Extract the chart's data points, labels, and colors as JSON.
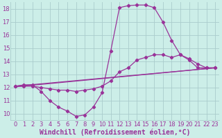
{
  "bg_color": "#cceee8",
  "grid_color": "#aacccc",
  "line_color": "#993399",
  "marker_color": "#993399",
  "xlabel": "Windchill (Refroidissement éolien,°C)",
  "xlim": [
    -0.5,
    23.5
  ],
  "ylim": [
    9.5,
    18.5
  ],
  "yticks": [
    10,
    11,
    12,
    13,
    14,
    15,
    16,
    17,
    18
  ],
  "xticks": [
    0,
    1,
    2,
    3,
    4,
    5,
    6,
    7,
    8,
    9,
    10,
    11,
    12,
    13,
    14,
    15,
    16,
    17,
    18,
    19,
    20,
    21,
    22,
    23
  ],
  "line1_x": [
    0,
    1,
    2,
    3,
    4,
    5,
    6,
    7,
    8,
    9,
    10,
    11,
    12,
    13,
    14,
    15,
    16,
    17,
    18,
    19,
    20,
    21,
    22,
    23
  ],
  "line1_y": [
    12.1,
    12.2,
    12.2,
    11.7,
    11.0,
    10.5,
    10.2,
    9.8,
    9.9,
    10.5,
    11.6,
    14.8,
    18.1,
    18.25,
    18.3,
    18.3,
    18.1,
    17.0,
    15.6,
    14.5,
    14.1,
    13.5,
    13.5,
    13.5
  ],
  "line2_x": [
    0,
    1,
    2,
    3,
    4,
    5,
    6,
    7,
    8,
    9,
    10,
    11,
    12,
    13,
    14,
    15,
    16,
    17,
    18,
    19,
    20,
    21,
    22,
    23
  ],
  "line2_y": [
    12.1,
    12.1,
    12.1,
    12.0,
    11.9,
    11.8,
    11.8,
    11.7,
    11.8,
    11.9,
    12.1,
    12.5,
    13.2,
    13.5,
    14.1,
    14.3,
    14.5,
    14.5,
    14.3,
    14.5,
    14.2,
    13.8,
    13.5,
    13.5
  ],
  "line3_x": [
    0,
    23
  ],
  "line3_y": [
    12.05,
    13.5
  ],
  "line4_x": [
    0,
    23
  ],
  "line4_y": [
    12.1,
    13.5
  ],
  "font_color": "#993399",
  "tick_fontsize": 6.0,
  "label_fontsize": 7.0
}
